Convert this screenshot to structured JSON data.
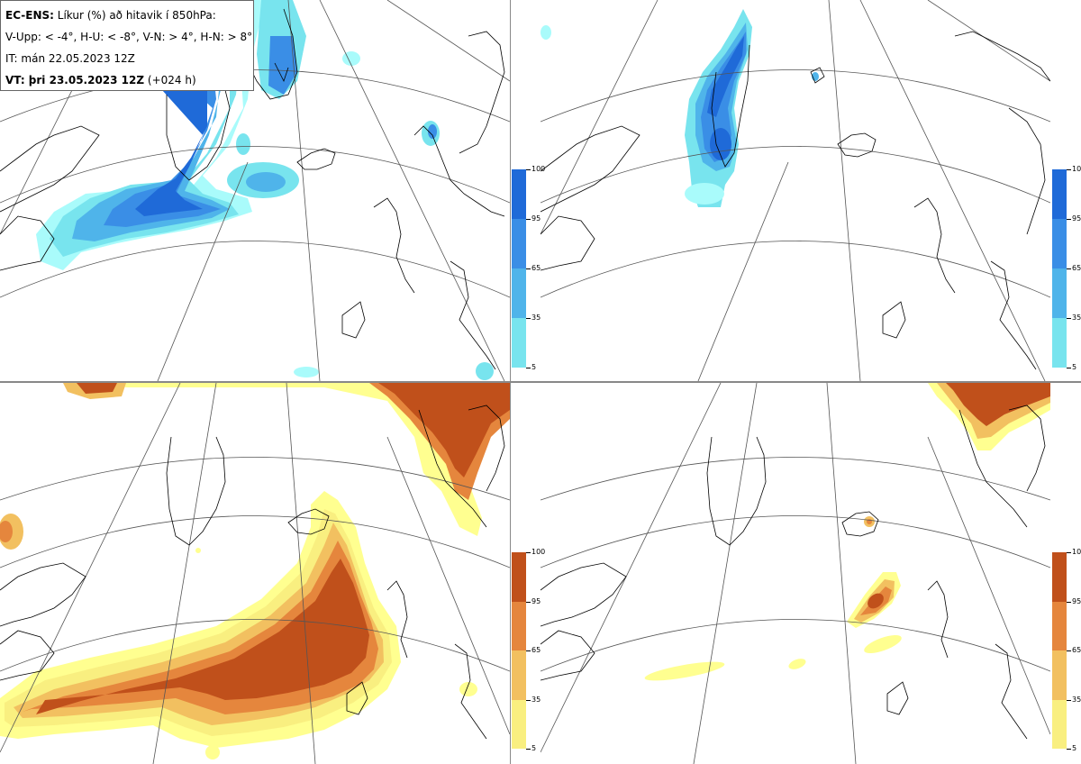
{
  "legend": {
    "model": "EC-ENS:",
    "title": "Líkur (%) að hitavik í 850hPa:",
    "categories_line": "V-Upp: < -4°, H-U: < -8°, V-N: > 4°, H-N: > 8°",
    "initial_time": "IT: mán 22.05.2023 12Z",
    "valid_prefix": "VT: þri 23.05.2023 12Z",
    "lead_time": "(+024 h)"
  },
  "panels": [
    {
      "id": "V-Upp",
      "scale": "blue"
    },
    {
      "id": "H-U",
      "scale": "blue"
    },
    {
      "id": "V-N",
      "scale": "orange"
    },
    {
      "id": "H-N",
      "scale": "orange"
    }
  ],
  "colorbar": {
    "tick_labels": [
      "100",
      "95",
      "65",
      "35",
      "5"
    ],
    "blue_colors": [
      "#1f6ad8",
      "#3a8ee6",
      "#4fb4ea",
      "#78e4ee",
      "#a9fbfb"
    ],
    "orange_colors": [
      "#c0501b",
      "#e5863d",
      "#f2c060",
      "#f9ef80",
      "#ffff90"
    ]
  }
}
